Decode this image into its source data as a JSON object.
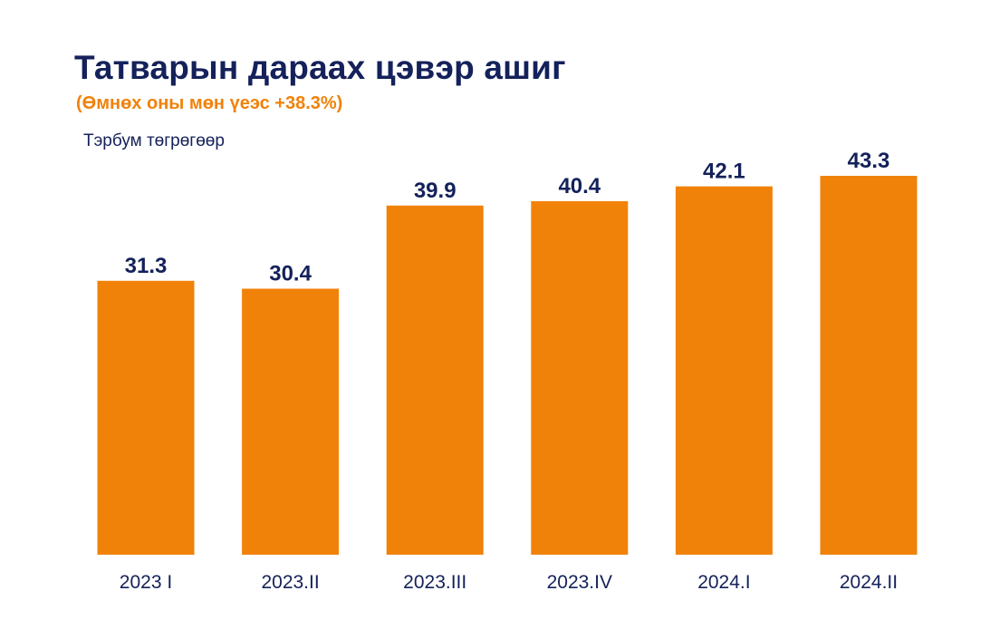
{
  "header": {
    "title": "Татварын дараах цэвэр ашиг",
    "subtitle": "(Өмнөх оны мөн үеэс +38.3%)",
    "unit": "Тэрбум төгрөгөөр"
  },
  "colors": {
    "bar": "#F0820A",
    "label": "#14215A",
    "tick": "#14215A"
  },
  "chart_data": {
    "type": "bar",
    "categories": [
      "2023 I",
      "2023.II",
      "2023.III",
      "2023.IV",
      "2024.I",
      "2024.II"
    ],
    "values": [
      31.3,
      30.4,
      39.9,
      40.4,
      42.1,
      43.3
    ],
    "value_labels": [
      "31.3",
      "30.4",
      "39.9",
      "40.4",
      "42.1",
      "43.3"
    ],
    "title": "Татварын дараах цэвэр ашиг",
    "subtitle": "(Өмнөх оны мөн үеэс +38.3%)",
    "ylabel": "Тэрбум төгрөгөөр",
    "xlabel": "",
    "ylim": [
      0,
      43.3
    ],
    "grid": false,
    "legend": "none"
  }
}
